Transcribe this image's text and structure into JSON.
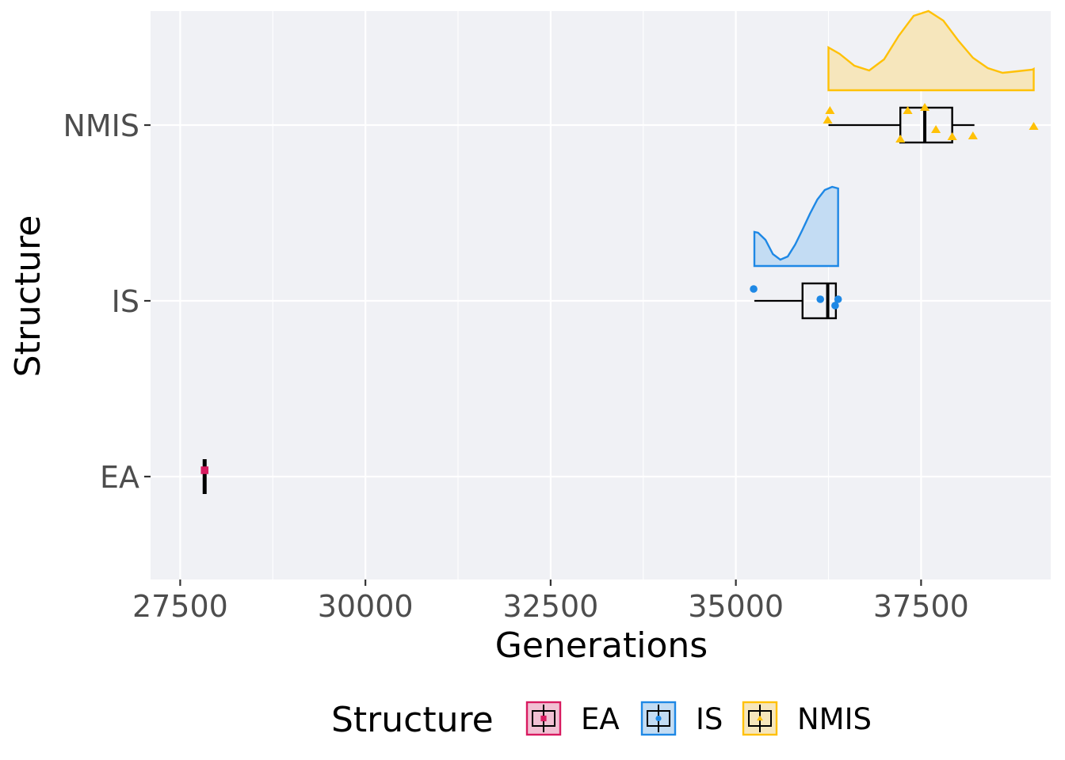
{
  "chart_data": {
    "type": "raincloud",
    "title": "",
    "xlabel": "Generations",
    "ylabel": "Structure",
    "xlim": [
      27100,
      39250
    ],
    "x_ticks": [
      27500,
      30000,
      32500,
      35000,
      37500
    ],
    "x_tick_labels": [
      "27500",
      "30000",
      "32500",
      "35000",
      "37500"
    ],
    "categories": [
      "EA",
      "IS",
      "NMIS"
    ],
    "grid": true,
    "legend": {
      "title": "Structure",
      "position": "bottom",
      "entries": [
        "EA",
        "IS",
        "NMIS"
      ]
    },
    "series": [
      {
        "name": "EA",
        "color": "#d81b60",
        "fill": "#f1c0d3",
        "marker": "square",
        "box": {
          "min": 27830,
          "q1": 27830,
          "median": 27830,
          "q3": 27830,
          "max": 27830
        },
        "points": [
          27830
        ],
        "density": null
      },
      {
        "name": "IS",
        "color": "#1e88e5",
        "fill": "#c3dcf3",
        "marker": "circle",
        "box": {
          "min": 35250,
          "q1": 35900,
          "median": 36240,
          "q3": 36350,
          "max": 36380
        },
        "points": [
          35240,
          36140,
          36380,
          36340
        ],
        "density": {
          "x": [
            35250,
            35300,
            35400,
            35500,
            35600,
            35700,
            35800,
            35900,
            36000,
            36100,
            36200,
            36300,
            36380
          ],
          "y": [
            0.43,
            0.42,
            0.33,
            0.15,
            0.08,
            0.12,
            0.27,
            0.46,
            0.66,
            0.84,
            0.96,
            1.0,
            0.98
          ]
        }
      },
      {
        "name": "NMIS",
        "color": "#ffc107",
        "fill": "#f6e6bc",
        "marker": "triangle",
        "box": {
          "min": 36250,
          "q1": 37220,
          "median": 37550,
          "q3": 37920,
          "max": 38220
        },
        "points": [
          36270,
          36240,
          37320,
          37550,
          37700,
          37220,
          37920,
          38200,
          39020
        ],
        "density": {
          "x": [
            36250,
            36400,
            36600,
            36800,
            37000,
            37200,
            37400,
            37600,
            37800,
            38000,
            38200,
            38400,
            38600,
            38800,
            39000,
            39020
          ],
          "y": [
            0.54,
            0.46,
            0.31,
            0.25,
            0.39,
            0.69,
            0.94,
            1.0,
            0.88,
            0.63,
            0.41,
            0.28,
            0.22,
            0.24,
            0.26,
            0.27
          ]
        }
      }
    ]
  }
}
